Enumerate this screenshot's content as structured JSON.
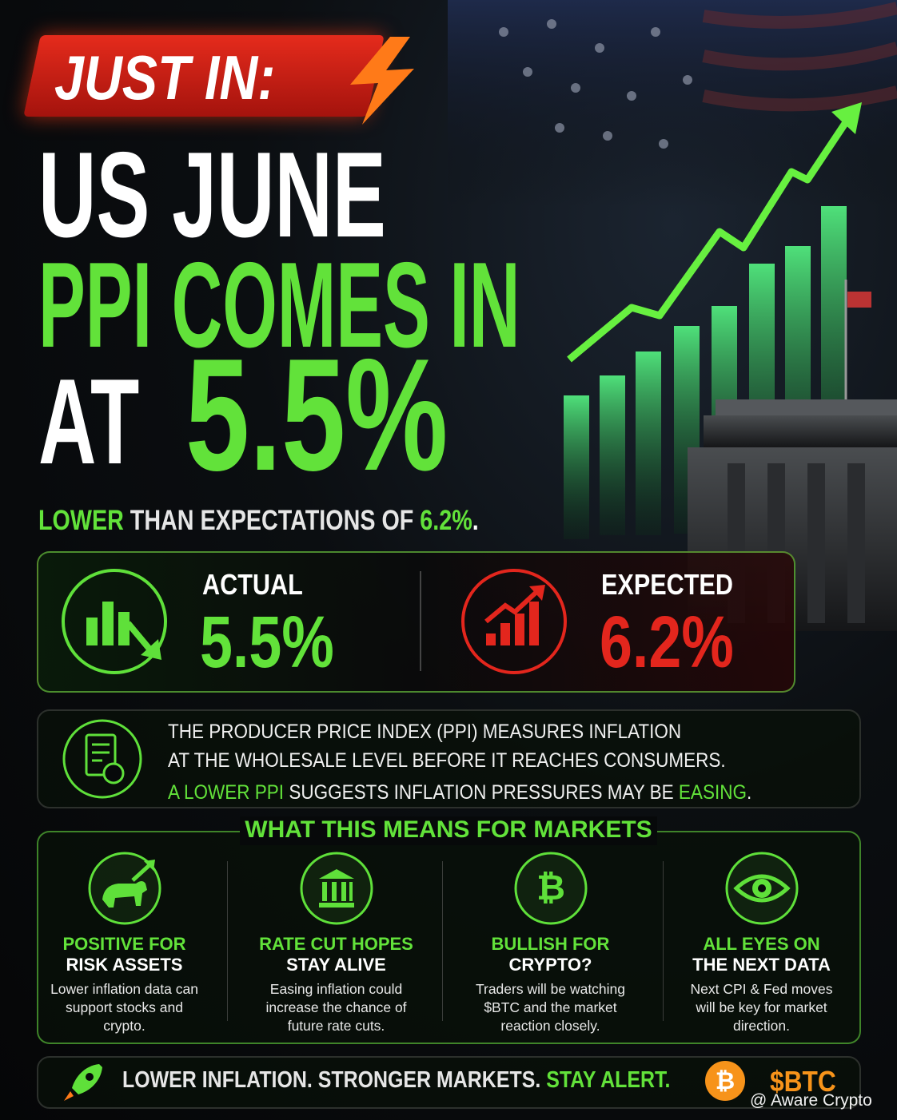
{
  "badge": "JUST IN:",
  "headline": {
    "line1": "US JUNE",
    "line2": "PPI COMES IN",
    "line3_prefix": "AT",
    "line3_value": "5.5%"
  },
  "subhead": {
    "highlight": "LOWER",
    "text": "THAN EXPECTATIONS OF",
    "value": "6.2%",
    "end": "."
  },
  "stats": {
    "actual": {
      "label": "ACTUAL",
      "value": "5.5%"
    },
    "expected": {
      "label": "EXPECTED",
      "value": "6.2%"
    }
  },
  "info": {
    "line1": "THE PRODUCER PRICE INDEX (PPI) MEASURES INFLATION",
    "line2": "AT THE WHOLESALE LEVEL BEFORE IT REACHES CONSUMERS.",
    "line3_highlight": "A LOWER PPI",
    "line3_text": "SUGGESTS INFLATION PRESSURES MAY BE",
    "line3_highlight2": "EASING",
    "line3_end": "."
  },
  "markets": {
    "title": "WHAT THIS MEANS FOR MARKETS",
    "items": [
      {
        "title1": "POSITIVE FOR",
        "title2": "RISK ASSETS",
        "body": "Lower inflation data can support stocks and crypto."
      },
      {
        "title1": "RATE CUT HOPES",
        "title2": "STAY ALIVE",
        "body": "Easing inflation could increase the chance of future rate cuts."
      },
      {
        "title1": "BULLISH FOR",
        "title2": "CRYPTO?",
        "body": "Traders will be watching $BTC and the market reaction closely."
      },
      {
        "title1": "ALL EYES ON",
        "title2": "THE NEXT DATA",
        "body": "Next CPI & Fed moves will be key for market direction."
      }
    ]
  },
  "footer": {
    "text": "LOWER INFLATION. STRONGER MARKETS.",
    "highlight": "STAY ALERT.",
    "ticker": "$BTC",
    "watermark": "@ Aware Crypto"
  }
}
